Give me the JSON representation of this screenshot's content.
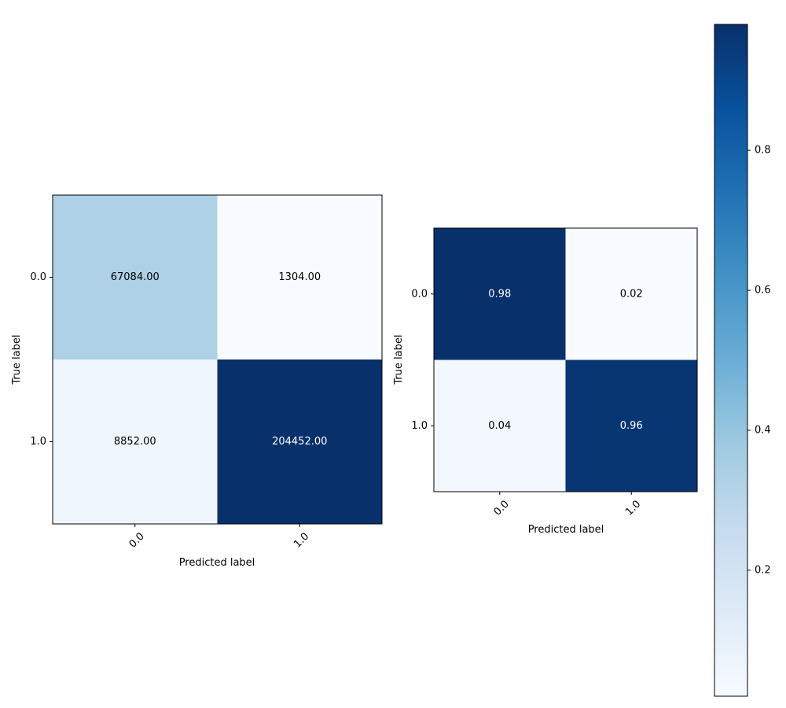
{
  "chart_data": [
    {
      "type": "heatmap",
      "xlabel": "Predicted label",
      "ylabel": "True label",
      "x_categories": [
        "0.0",
        "1.0"
      ],
      "y_categories": [
        "0.0",
        "1.0"
      ],
      "values": [
        [
          67084,
          1304
        ],
        [
          8852,
          204452
        ]
      ],
      "cell_labels": [
        [
          "67084.00",
          "1304.00"
        ],
        [
          "8852.00",
          "204452.00"
        ]
      ],
      "colormap": "Blues"
    },
    {
      "type": "heatmap",
      "xlabel": "Predicted label",
      "ylabel": "True label",
      "x_categories": [
        "0.0",
        "1.0"
      ],
      "y_categories": [
        "0.0",
        "1.0"
      ],
      "values": [
        [
          0.98,
          0.02
        ],
        [
          0.04,
          0.96
        ]
      ],
      "cell_labels": [
        [
          "0.98",
          "0.02"
        ],
        [
          "0.04",
          "0.96"
        ]
      ],
      "colormap": "Blues",
      "colorbar": {
        "range": [
          0.02,
          0.98
        ],
        "ticks": [
          "0.2",
          "0.4",
          "0.6",
          "0.8"
        ]
      }
    }
  ]
}
